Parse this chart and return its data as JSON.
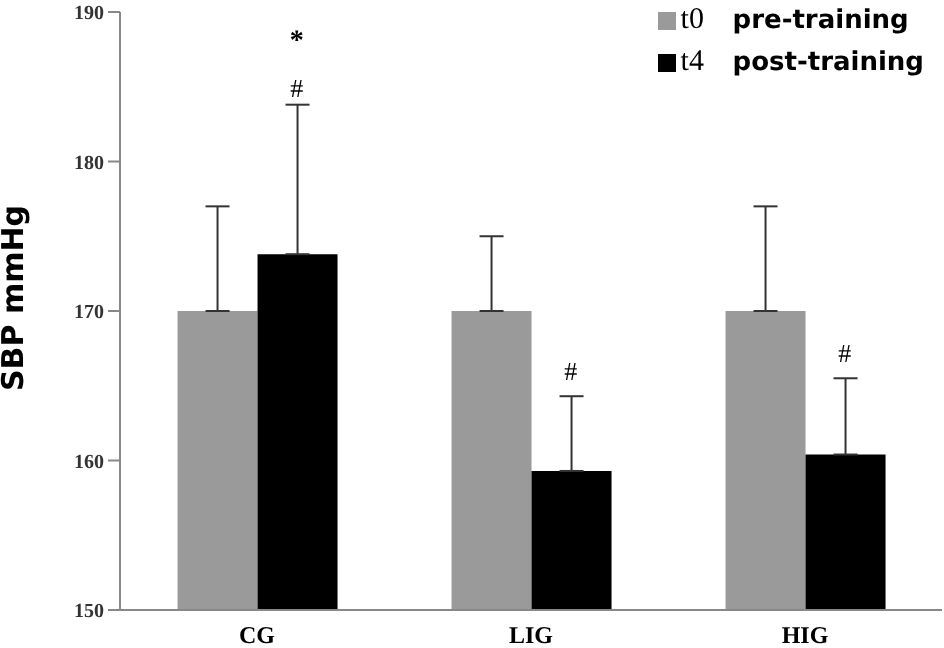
{
  "chart_data": {
    "type": "bar",
    "ylabel": "SBP mmHg",
    "categories": [
      "CG",
      "LIG",
      "HIG"
    ],
    "series": [
      {
        "name": "t0 pre-training",
        "color": "#9a9a9a",
        "values": [
          170,
          170,
          170
        ],
        "errors": [
          [
            170,
            177
          ],
          [
            170,
            175
          ],
          [
            170,
            177
          ]
        ]
      },
      {
        "name": "t4 post-training",
        "color": "#000000",
        "values": [
          173.8,
          159.3,
          160.4
        ],
        "errors": [
          [
            173.8,
            183.8
          ],
          [
            159.3,
            164.3
          ],
          [
            160.4,
            165.5
          ]
        ]
      }
    ],
    "annotations": [
      "#",
      "*",
      {
        "text": "#",
        "x": "LIG",
        "y": 165.1
      },
      {
        "text": "#",
        "x": "HIG",
        "y": 166.3
      }
    ],
    "ylim": [
      150,
      190
    ],
    "yticks": [
      150,
      160,
      170,
      180,
      190
    ],
    "grid": false,
    "legend": "top right"
  }
}
